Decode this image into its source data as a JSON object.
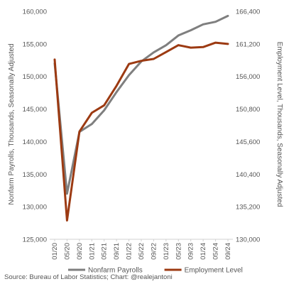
{
  "chart_data": {
    "type": "line",
    "x": [
      "01/20",
      "05/20",
      "09/20",
      "01/21",
      "05/21",
      "09/21",
      "01/22",
      "05/22",
      "09/22",
      "01/23",
      "05/23",
      "09/23",
      "01/24",
      "05/24",
      "09/24"
    ],
    "x_tick_labels": [
      "01/20",
      "05/20",
      "09/20",
      "01/21",
      "05/21",
      "09/21",
      "01/22",
      "05/22",
      "09/22",
      "01/23",
      "05/23",
      "09/23",
      "01/24",
      "05/24",
      "09/24"
    ],
    "series": [
      {
        "name": "Nonfarm Payrolls",
        "axis": "left",
        "color": "#7f7f7f",
        "values": [
          152000,
          132000,
          141500,
          142700,
          144800,
          147600,
          150200,
          152300,
          153700,
          154800,
          156300,
          157100,
          158000,
          158400,
          159300
        ]
      },
      {
        "name": "Employment Level",
        "axis": "right",
        "color": "#9c3a12",
        "values": [
          158700,
          133000,
          147200,
          150200,
          151400,
          154500,
          158000,
          158500,
          158800,
          159900,
          161000,
          160600,
          160700,
          161400,
          161200
        ]
      }
    ],
    "ylabel": "Nonfarm Payrolls, Thousands, Seasonally Adjusted",
    "y2label": "Employment Level, Thousands, Seasonally Adjusted",
    "ylim": [
      125000,
      160000
    ],
    "y2lim": [
      130000,
      166400
    ],
    "y_ticks": [
      "125,000",
      "130,000",
      "135,000",
      "140,000",
      "145,000",
      "150,000",
      "155,000",
      "160,000"
    ],
    "y2_ticks": [
      "130,000",
      "135,200",
      "140,400",
      "145,600",
      "150,800",
      "156,000",
      "161,200",
      "166,400"
    ],
    "grid": false,
    "legend": "bottom",
    "source": "Source: Bureau of Labor Statistics; Chart: @realejantoni"
  }
}
